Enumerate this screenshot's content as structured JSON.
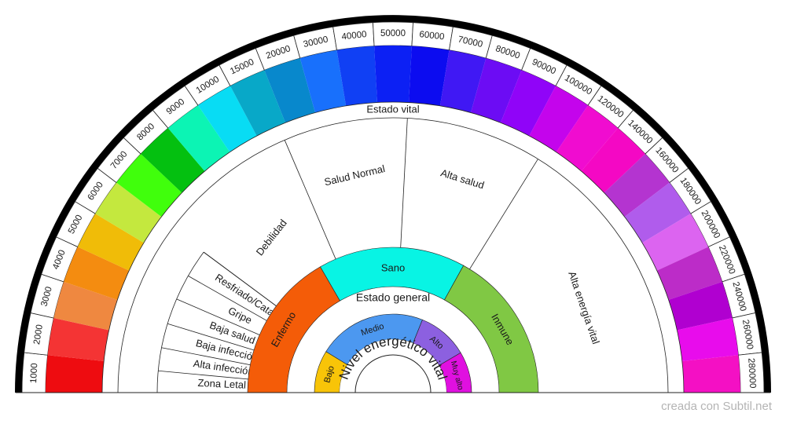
{
  "title": "",
  "credit": "creada con Subtil.net",
  "rings": {
    "scale": {
      "labels": [
        "1000",
        "2000",
        "3000",
        "4000",
        "5000",
        "6000",
        "7000",
        "8000",
        "9000",
        "10000",
        "15000",
        "20000",
        "30000",
        "40000",
        "50000",
        "60000",
        "70000",
        "80000",
        "90000",
        "100000",
        "120000",
        "140000",
        "160000",
        "180000",
        "200000",
        "220000",
        "240000",
        "260000",
        "280000"
      ],
      "colors": [
        "#ee0c10",
        "#f43434",
        "#ef8840",
        "#f48c10",
        "#f0bc08",
        "#c4e83e",
        "#40ff0c",
        "#04c010",
        "#0cf4b4",
        "#08dcf4",
        "#08a8c8",
        "#0888cc",
        "#1870fc",
        "#1040f4",
        "#0c20f4",
        "#0c0cf0",
        "#4018f4",
        "#6c0cf4",
        "#9004f8",
        "#c404ec",
        "#f00cd0",
        "#f408c4",
        "#b434d0",
        "#b05cec",
        "#dc64f0",
        "#bc2cc8",
        "#b000d0",
        "#e80cec",
        "#f410c4"
      ]
    },
    "estado_vital": {
      "title": "Estado vital",
      "left_labels": [
        "Zona Letal",
        "Alta infección",
        "Baja infección",
        "Baja salud",
        "Gripe",
        "Resfriado/Catarro"
      ],
      "arc_labels": [
        "Debilidad",
        "Salud Normal",
        "Alta salud",
        "Alta energía vital"
      ]
    },
    "estado_general": {
      "title": "Estado general",
      "segments": [
        {
          "label": "Enfermo",
          "color": "#f45c08"
        },
        {
          "label": "Sano",
          "color": "#08f4e4"
        },
        {
          "label": "Inmune",
          "color": "#80c844"
        }
      ]
    },
    "nivel": {
      "title": "Nivel energético vital",
      "segments": [
        {
          "label": "Bajo",
          "color": "#f8c408"
        },
        {
          "label": "Medio",
          "color": "#4c98f0"
        },
        {
          "label": "Alto",
          "color": "#8c60e0"
        },
        {
          "label": "Muy alto",
          "color": "#e010e0"
        }
      ]
    }
  }
}
